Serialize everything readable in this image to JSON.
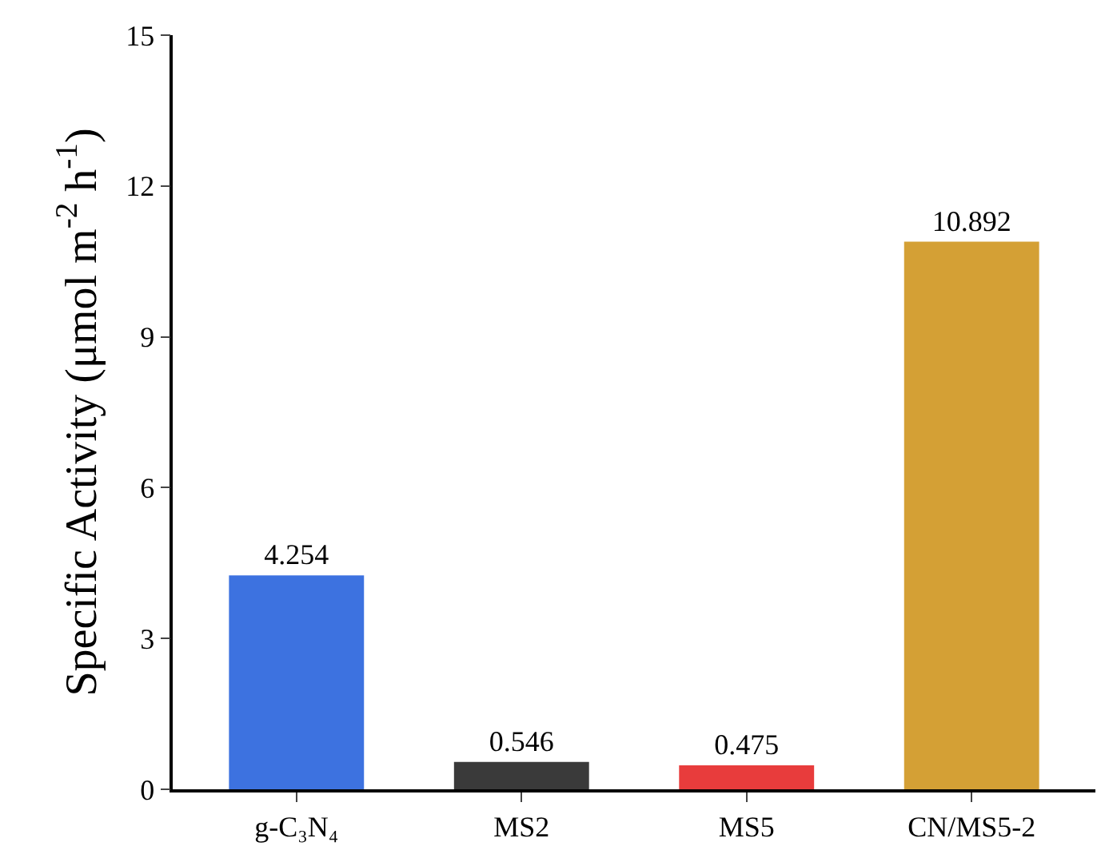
{
  "chart_data": {
    "type": "bar",
    "ylabel": "Specific Activity (μmol m$^{-2}$ h$^{-1}$)",
    "categories": [
      "g-C₃N₄",
      "MS2",
      "MS5",
      "CN/MS5-2"
    ],
    "values": [
      4.254,
      0.546,
      0.475,
      10.892
    ],
    "colors": [
      "#3d72e0",
      "#3a3a3a",
      "#e83c3c",
      "#d4a035"
    ],
    "ylim": [
      0,
      15
    ],
    "yticks": [
      0,
      3,
      6,
      9,
      12,
      15
    ],
    "grid": false,
    "legend": false,
    "data_labels": true
  }
}
